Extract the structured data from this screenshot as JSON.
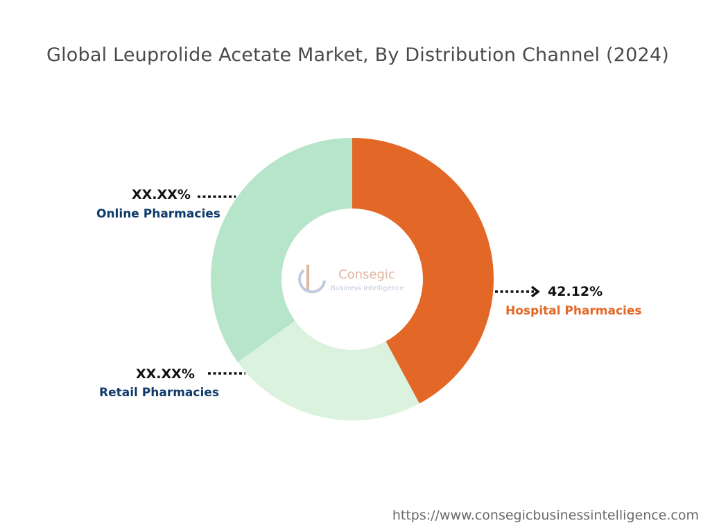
{
  "chart_data": {
    "type": "pie",
    "title": "Global Leuprolide Acetate Market, By Distribution Channel  (2024)",
    "categories": [
      "Hospital Pharmacies",
      "Retail Pharmacies",
      "Online Pharmacies"
    ],
    "values": [
      42.12,
      22.88,
      35.0
    ],
    "value_labels": [
      "42.12%",
      "XX.XX%",
      "XX.XX%"
    ],
    "colors": [
      "#e36726",
      "#dbf3de",
      "#b7e5c9"
    ],
    "label_colors": [
      "#e36726",
      "#0f3b6a",
      "#0f3b6a"
    ],
    "donut": true,
    "legend": "none"
  },
  "logo": {
    "name": "Consegic",
    "tagline": "Business Intelligence"
  },
  "source_url": "https://www.consegicbusinessintelligence.com"
}
